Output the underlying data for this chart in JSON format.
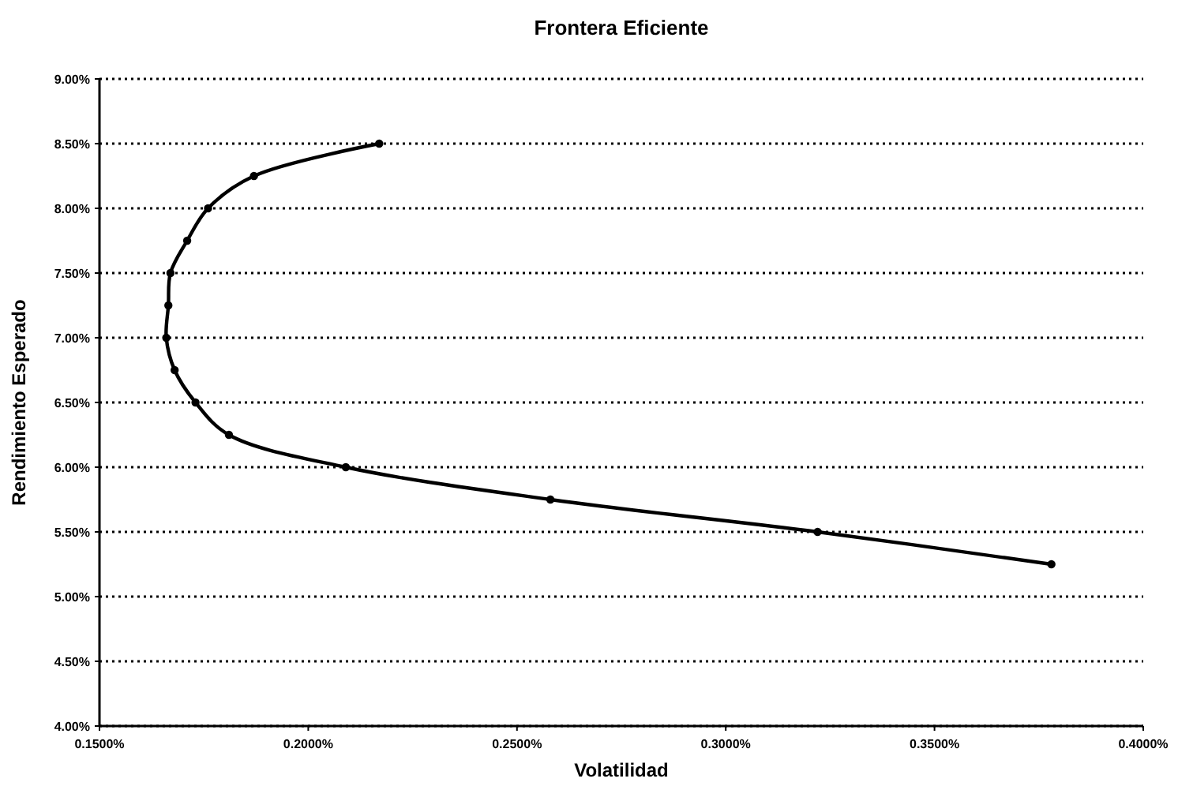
{
  "chart_data": {
    "type": "line",
    "title": "Frontera Eficiente",
    "xlabel": "Volatilidad",
    "ylabel": "Rendimiento Esperado",
    "x": [
      0.217,
      0.187,
      0.176,
      0.171,
      0.167,
      0.1665,
      0.166,
      0.168,
      0.173,
      0.181,
      0.209,
      0.258,
      0.322,
      0.378
    ],
    "series": [
      {
        "color": "#000000",
        "values": [
          8.5,
          8.25,
          8.0,
          7.75,
          7.5,
          7.25,
          7.0,
          6.75,
          6.5,
          6.25,
          6.0,
          5.75,
          5.5,
          5.25
        ]
      }
    ],
    "xlim": [
      0.15,
      0.4
    ],
    "ylim": [
      4,
      9
    ],
    "xticks": [
      {
        "value": 0.15,
        "label": "0.1500%"
      },
      {
        "value": 0.2,
        "label": "0.2000%"
      },
      {
        "value": 0.25,
        "label": "0.2500%"
      },
      {
        "value": 0.3,
        "label": "0.3000%"
      },
      {
        "value": 0.35,
        "label": "0.3500%"
      },
      {
        "value": 0.4,
        "label": "0.4000%"
      }
    ],
    "yticks": [
      {
        "value": 4,
        "label": "4.00%"
      },
      {
        "value": 4.5,
        "label": "4.50%"
      },
      {
        "value": 5,
        "label": "5.00%"
      },
      {
        "value": 5.5,
        "label": "5.50%"
      },
      {
        "value": 6,
        "label": "6.00%"
      },
      {
        "value": 6.5,
        "label": "6.50%"
      },
      {
        "value": 7,
        "label": "7.00%"
      },
      {
        "value": 7.5,
        "label": "7.50%"
      },
      {
        "value": 8,
        "label": "8.00%"
      },
      {
        "value": 8.5,
        "label": "8.50%"
      },
      {
        "value": 9,
        "label": "9.00%"
      }
    ],
    "grid": "y",
    "marker": "circle",
    "line_style": "solid"
  }
}
